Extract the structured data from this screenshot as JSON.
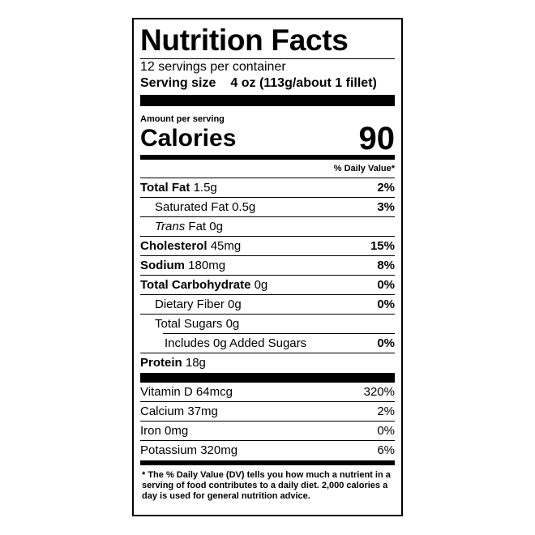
{
  "title": "Nutrition Facts",
  "servings": "12 servings per container",
  "serving_size": {
    "label": "Serving size",
    "value": "4 oz (113g/about 1 fillet)"
  },
  "amount_per_serving": "Amount per serving",
  "calories": {
    "label": "Calories",
    "value": "90"
  },
  "daily_value_header": "% Daily Value*",
  "nutrients": [
    {
      "name": "Total Fat",
      "amount": "1.5g",
      "dv": "2%"
    },
    {
      "name": "Saturated Fat",
      "amount": "0.5g",
      "dv": "3%"
    },
    {
      "name": "Trans",
      "amount": "Fat 0g"
    },
    {
      "name": "Cholesterol",
      "amount": "45mg",
      "dv": "15%"
    },
    {
      "name": "Sodium",
      "amount": "180mg",
      "dv": "8%"
    },
    {
      "name": "Total Carbohydrate",
      "amount": "0g",
      "dv": "0%"
    },
    {
      "name": "Dietary Fiber",
      "amount": "0g",
      "dv": "0%"
    },
    {
      "name": "Total Sugars",
      "amount": "0g"
    },
    {
      "name": "Includes 0g Added Sugars",
      "dv": "0%"
    },
    {
      "name": "Protein",
      "amount": "18g"
    }
  ],
  "vitamins": [
    {
      "name": "Vitamin D",
      "amount": "64mcg",
      "dv": "320%"
    },
    {
      "name": "Calcium",
      "amount": "37mg",
      "dv": "2%"
    },
    {
      "name": "Iron",
      "amount": "0mg",
      "dv": "0%"
    },
    {
      "name": "Potassium",
      "amount": "320mg",
      "dv": "6%"
    }
  ],
  "footnote": "* The % Daily Value (DV) tells you how much a nutrient in a serving of food contributes to a daily diet. 2,000 calories a day is used for general nutrition advice."
}
